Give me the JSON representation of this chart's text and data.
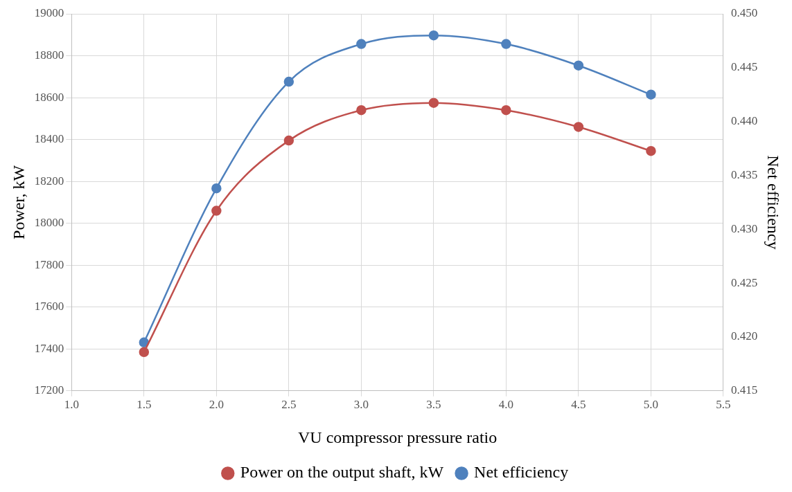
{
  "chart_data": {
    "type": "line",
    "xlabel": "VU compressor pressure ratio",
    "ylabel": "Power, kW",
    "y2label": "Net efficiency",
    "x": [
      1.5,
      2.0,
      2.5,
      3.0,
      3.5,
      4.0,
      4.5,
      5.0
    ],
    "series": [
      {
        "name": "Power on the output shaft, kW",
        "color": "#c0504d",
        "values": [
          17385,
          18060,
          18395,
          18540,
          18575,
          18540,
          18460,
          18345
        ]
      },
      {
        "name": "Net efficiency",
        "color": "#4f81bd",
        "axis": "y2",
        "values": [
          0.4195,
          0.4338,
          0.4437,
          0.4472,
          0.448,
          0.4472,
          0.4452,
          0.4425
        ]
      }
    ],
    "xlim": [
      1.0,
      5.5
    ],
    "xticks": [
      {
        "value": 1.0,
        "label": "1.0"
      },
      {
        "value": 1.5,
        "label": "1.5"
      },
      {
        "value": 2.0,
        "label": "2.0"
      },
      {
        "value": 2.5,
        "label": "2.5"
      },
      {
        "value": 3.0,
        "label": "3.0"
      },
      {
        "value": 3.5,
        "label": "3.5"
      },
      {
        "value": 4.0,
        "label": "4.0"
      },
      {
        "value": 4.5,
        "label": "4.5"
      },
      {
        "value": 5.0,
        "label": "5.0"
      },
      {
        "value": 5.5,
        "label": "5.5"
      }
    ],
    "ylim": [
      17200,
      19000
    ],
    "yticks": [
      17200,
      17400,
      17600,
      17800,
      18000,
      18200,
      18400,
      18600,
      18800,
      19000
    ],
    "y2lim": [
      0.415,
      0.45
    ],
    "y2ticks": [
      {
        "value": 0.415,
        "label": "0.415"
      },
      {
        "value": 0.42,
        "label": "0.420"
      },
      {
        "value": 0.425,
        "label": "0.425"
      },
      {
        "value": 0.43,
        "label": "0.430"
      },
      {
        "value": 0.435,
        "label": "0.435"
      },
      {
        "value": 0.44,
        "label": "0.440"
      },
      {
        "value": 0.445,
        "label": "0.445"
      },
      {
        "value": 0.45,
        "label": "0.450"
      }
    ],
    "grid": true,
    "legend": "bottom",
    "marker": "circle",
    "line_style": "solid"
  }
}
